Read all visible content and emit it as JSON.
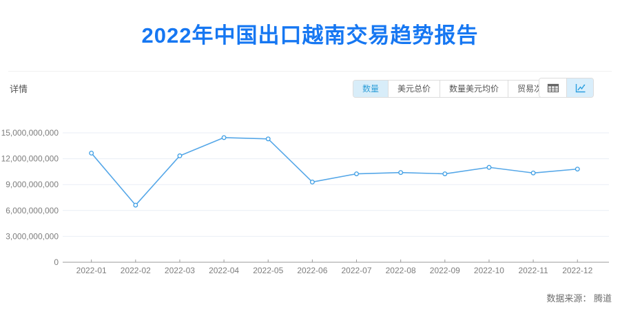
{
  "page": {
    "title": "2022年中国出口越南交易趋势报告",
    "section_label": "详情",
    "source_label": "数据来源： 腾道"
  },
  "toolbar": {
    "metric_tabs": [
      {
        "label": "数量",
        "selected": true
      },
      {
        "label": "美元总价",
        "selected": false
      },
      {
        "label": "数量美元均价",
        "selected": false
      },
      {
        "label": "贸易次数",
        "selected": false
      }
    ],
    "view_toggles": [
      {
        "icon": "table-icon",
        "selected": false
      },
      {
        "icon": "line-chart-icon",
        "selected": true
      }
    ]
  },
  "colors": {
    "title": "#1677f2",
    "line": "#55a7e8",
    "marker_stroke": "#3d9ee4",
    "grid": "#e9eef5",
    "axis": "#999999",
    "axis_text": "#7d7d7d",
    "selected_tab_bg": "#d8edf9",
    "selected_tab_text": "#2f9fd9"
  },
  "chart_data": {
    "type": "line",
    "title": "",
    "xlabel": "",
    "ylabel": "",
    "legend": false,
    "grid": true,
    "marker": "circle",
    "x": [
      "2022-01",
      "2022-02",
      "2022-03",
      "2022-04",
      "2022-05",
      "2022-06",
      "2022-07",
      "2022-08",
      "2022-09",
      "2022-10",
      "2022-11",
      "2022-12"
    ],
    "series": [
      {
        "name": "数量",
        "values": [
          12650000000,
          6620000000,
          12340000000,
          14450000000,
          14300000000,
          9300000000,
          10250000000,
          10400000000,
          10250000000,
          11000000000,
          10350000000,
          10800000000
        ]
      }
    ],
    "ylim": [
      0,
      15000000000
    ],
    "y_ticks": [
      0,
      3000000000,
      6000000000,
      9000000000,
      12000000000,
      15000000000
    ]
  }
}
